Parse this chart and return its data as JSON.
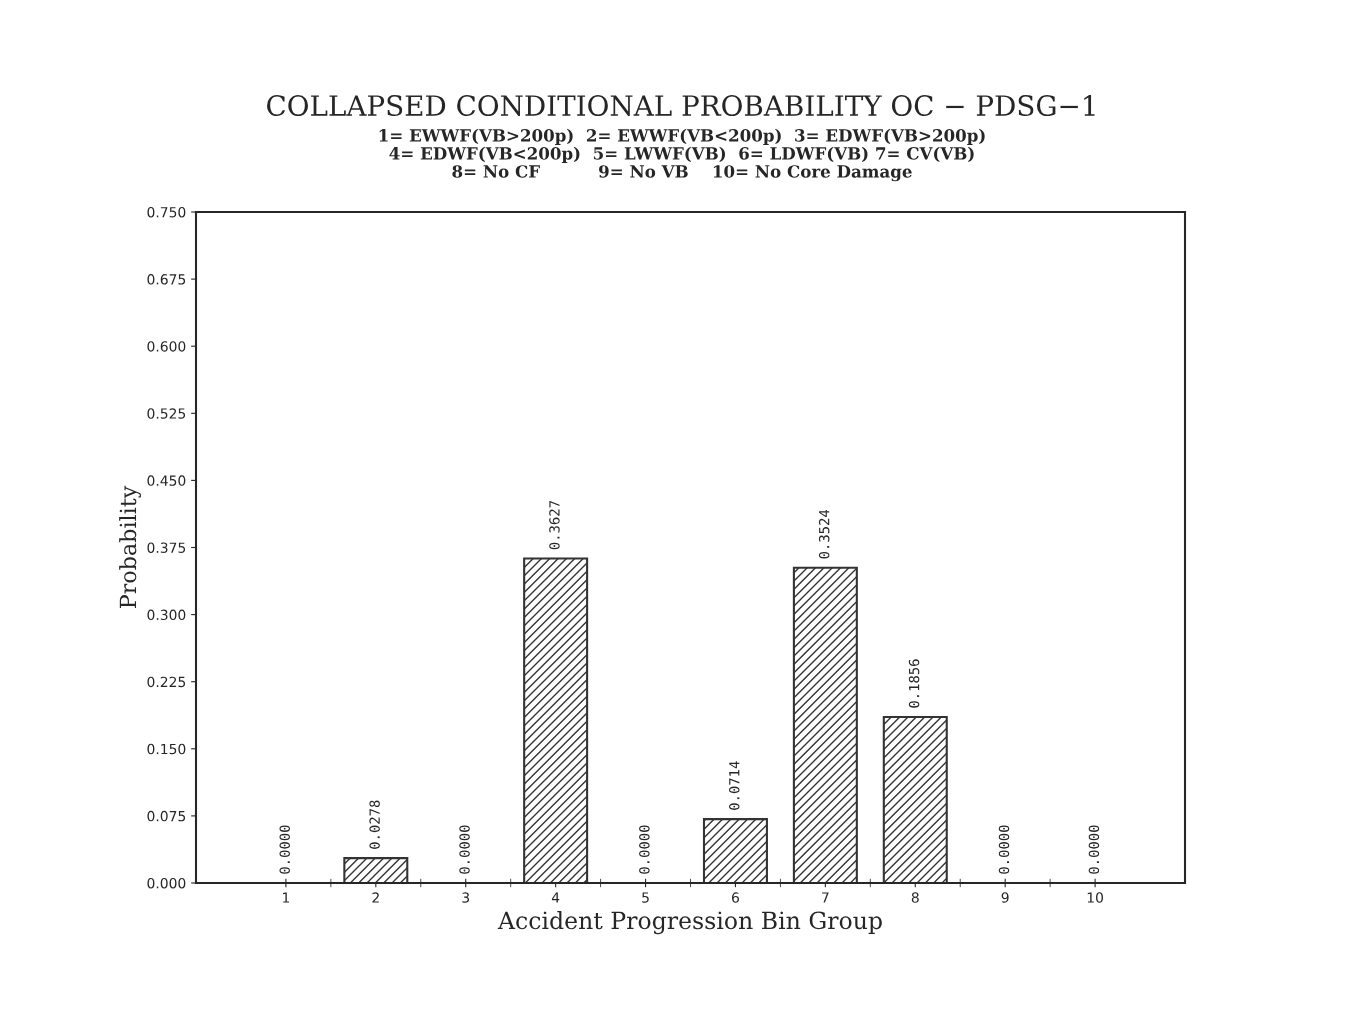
{
  "chart_data": {
    "type": "bar",
    "title": "COLLAPSED CONDITIONAL PROBABILITY OC − PDSG−1",
    "subtitle": "1= EWWF(VB>200p)  2= EWWF(VB<200p)  3= EDWF(VB>200p)\n4= EDWF(VB<200p)  5= LWWF(VB)  6= LDWF(VB) 7= CV(VB)\n8= No CF          9= No VB    10= No Core Damage",
    "xlabel": "Accident Progression Bin Group",
    "ylabel": "Probability",
    "categories": [
      "1",
      "2",
      "3",
      "4",
      "5",
      "6",
      "7",
      "8",
      "9",
      "10"
    ],
    "values": [
      0,
      0.0278,
      0,
      0.3627,
      0,
      0.0714,
      0.3524,
      0.1856,
      0,
      0
    ],
    "value_labels": [
      "0.0000",
      "0.0278",
      "0.0000",
      "0.3627",
      "0.0000",
      "0.0714",
      "0.3524",
      "0.1856",
      "0.0000",
      "0.0000"
    ],
    "color": "#333333",
    "ylim": [
      0,
      0.75
    ],
    "yticks": [
      {
        "value": 0,
        "label": "0.000"
      },
      {
        "value": 0.075,
        "label": "0.075"
      },
      {
        "value": 0.15,
        "label": "0.150"
      },
      {
        "value": 0.225,
        "label": "0.225"
      },
      {
        "value": 0.3,
        "label": "0.300"
      },
      {
        "value": 0.375,
        "label": "0.375"
      },
      {
        "value": 0.45,
        "label": "0.450"
      },
      {
        "value": 0.525,
        "label": "0.525"
      },
      {
        "value": 0.6,
        "label": "0.600"
      },
      {
        "value": 0.675,
        "label": "0.675"
      },
      {
        "value": 0.75,
        "label": "0.750"
      }
    ],
    "grid": false,
    "legend": false
  }
}
